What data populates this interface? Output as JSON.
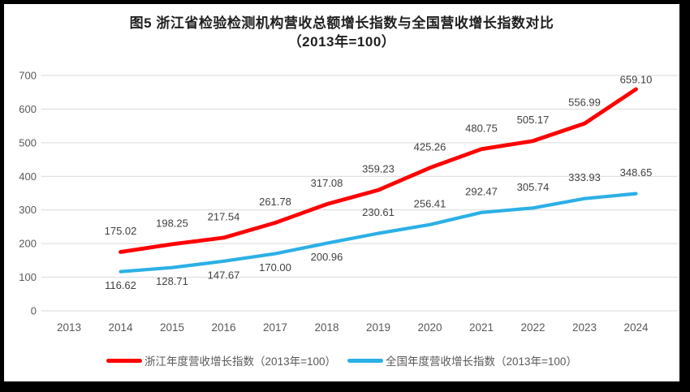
{
  "title": {
    "line1": "图5  浙江省检验检测机构营收总额增长指数与全国营收增长指数对比",
    "line2": "（2013年=100）"
  },
  "colors": {
    "frame": "#000000",
    "background": "#FFFFFF",
    "gridline": "#D9D9D9",
    "axis_text": "#595959",
    "data_label_text": "#404040",
    "title_text": "#1F1F1F",
    "zhejiang_red": "#FF0000",
    "national_blue": "#2BB0E6"
  },
  "chart_data": {
    "type": "line",
    "title": "图5  浙江省检验检测机构营收总额增长指数与全国营收增长指数对比（2013年=100）",
    "x": [
      "2013",
      "2014",
      "2015",
      "2016",
      "2017",
      "2018",
      "2019",
      "2020",
      "2021",
      "2022",
      "2023",
      "2024"
    ],
    "y_ticks": [
      0,
      100,
      200,
      300,
      400,
      500,
      600,
      700
    ],
    "ylim": [
      0,
      700
    ],
    "grid": true,
    "legend_position": "bottom",
    "series": [
      {
        "name": "浙江年度营收增长指数（2013年=100）",
        "color": "#FF0000",
        "values": [
          null,
          175.02,
          198.25,
          217.54,
          261.78,
          317.08,
          359.23,
          425.26,
          480.75,
          505.17,
          556.99,
          659.1
        ],
        "labels": [
          null,
          "175.02",
          "198.25",
          "217.54",
          "261.78",
          "317.08",
          "359.23",
          "425.26",
          "480.75",
          "505.17",
          "556.99",
          "659.10"
        ],
        "label_offsets": [
          null,
          -26,
          -26,
          -26,
          -26,
          -26,
          -26,
          -26,
          -26,
          -26,
          -26,
          -12
        ]
      },
      {
        "name": "全国年度营收增长指数（2013年=100）",
        "color": "#2BB0E6",
        "values": [
          null,
          116.62,
          128.71,
          147.67,
          170.0,
          200.96,
          230.61,
          256.41,
          292.47,
          305.74,
          333.93,
          348.65
        ],
        "labels": [
          null,
          "116.62",
          "128.71",
          "147.67",
          "170.00",
          "200.96",
          "230.61",
          "256.41",
          "292.47",
          "305.74",
          "333.93",
          "348.65"
        ],
        "label_offsets": [
          null,
          17,
          17,
          17,
          17,
          17,
          -26,
          -26,
          -26,
          -26,
          -26,
          -26
        ]
      }
    ]
  }
}
